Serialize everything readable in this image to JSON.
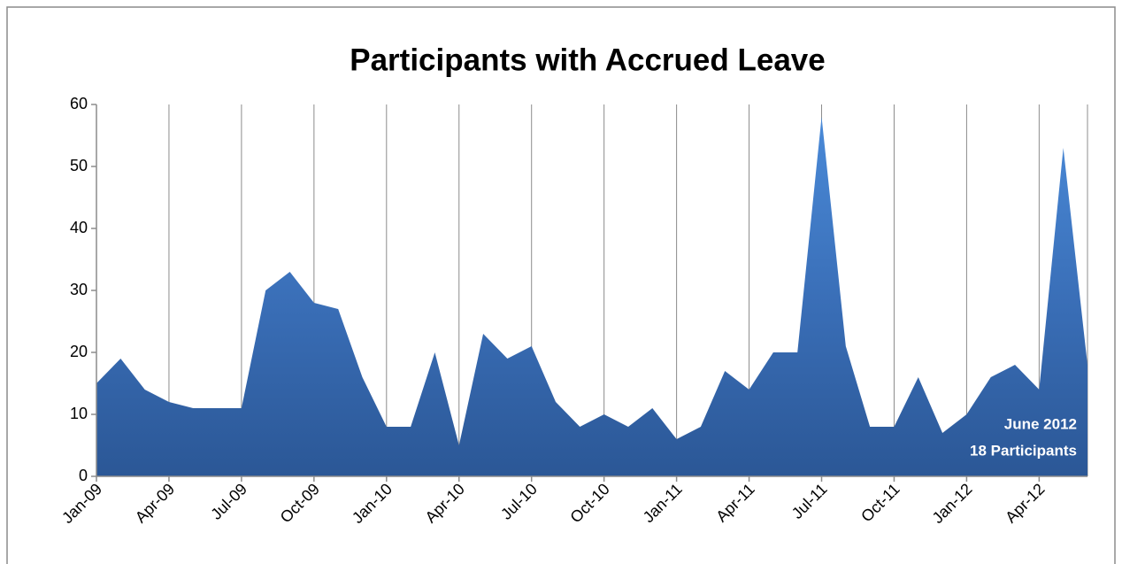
{
  "chart_data": {
    "type": "area",
    "title": "Participants with Accrued Leave",
    "categories": [
      "Jan-09",
      null,
      null,
      "Apr-09",
      null,
      null,
      "Jul-09",
      null,
      null,
      "Oct-09",
      null,
      null,
      "Jan-10",
      null,
      null,
      "Apr-10",
      null,
      null,
      "Jul-10",
      null,
      null,
      "Oct-10",
      null,
      null,
      "Jan-11",
      null,
      null,
      "Apr-11",
      null,
      null,
      "Jul-11",
      null,
      null,
      "Oct-11",
      null,
      null,
      "Jan-12",
      null,
      null,
      "Apr-12",
      null,
      null
    ],
    "values": [
      15,
      19,
      14,
      12,
      11,
      11,
      11,
      30,
      33,
      28,
      27,
      16,
      8,
      8,
      20,
      5,
      23,
      19,
      21,
      12,
      8,
      10,
      8,
      11,
      6,
      8,
      17,
      14,
      20,
      20,
      58,
      21,
      8,
      8,
      16,
      7,
      10,
      16,
      18,
      14,
      53,
      18
    ],
    "color": "#3a6fb8",
    "ylim": [
      0,
      60
    ],
    "yticks": [
      0,
      10,
      20,
      30,
      40,
      50,
      60
    ],
    "grid": true,
    "annotation": [
      "June 2012",
      "18 Participants"
    ]
  }
}
